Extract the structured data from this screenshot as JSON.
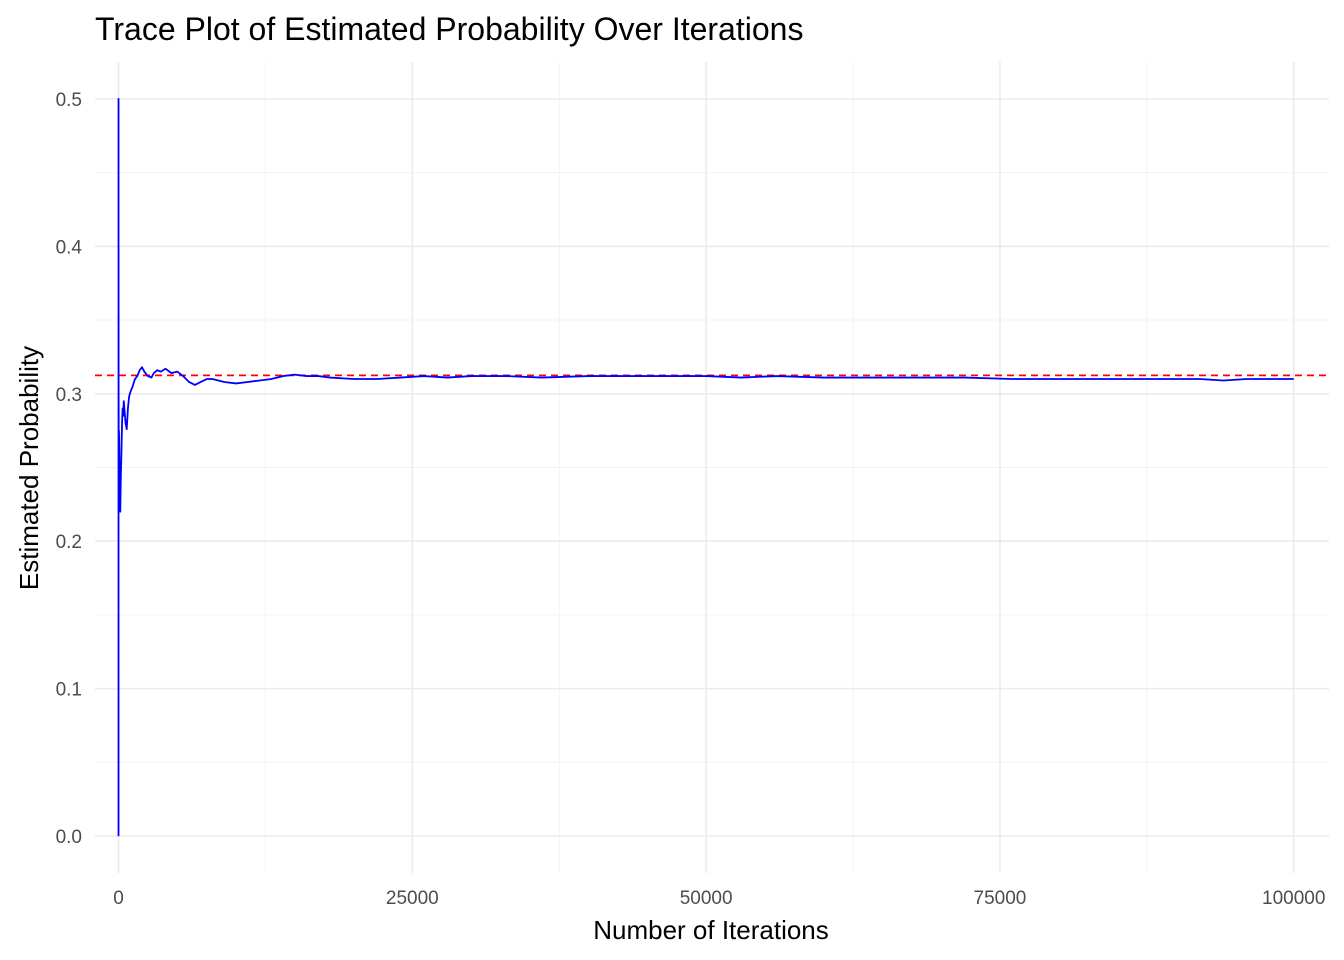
{
  "chart_data": {
    "type": "line",
    "title": "Trace Plot of Estimated Probability Over Iterations",
    "xlabel": "Number of Iterations",
    "ylabel": "Estimated Probability",
    "xlim": [
      -2000,
      103000
    ],
    "ylim": [
      -0.025,
      0.525
    ],
    "x_ticks": [
      0,
      25000,
      50000,
      75000,
      100000
    ],
    "x_tick_labels": [
      "0",
      "25000",
      "50000",
      "75000",
      "100000"
    ],
    "y_ticks": [
      0.0,
      0.1,
      0.2,
      0.3,
      0.4,
      0.5
    ],
    "y_tick_labels": [
      "0.0",
      "0.1",
      "0.2",
      "0.3",
      "0.4",
      "0.5"
    ],
    "grid": true,
    "legend": "none",
    "series": [
      {
        "color": "#0000ff",
        "x": [
          1,
          2,
          3,
          5,
          10,
          20,
          40,
          60,
          80,
          100,
          150,
          200,
          250,
          300,
          350,
          400,
          450,
          500,
          600,
          700,
          800,
          900,
          1000,
          1200,
          1400,
          1600,
          1800,
          2000,
          2200,
          2500,
          2800,
          3000,
          3300,
          3600,
          4000,
          4500,
          5000,
          5500,
          6000,
          6500,
          7000,
          7500,
          8000,
          9000,
          10000,
          11000,
          12000,
          13000,
          14000,
          15000,
          16000,
          17000,
          18000,
          20000,
          22000,
          24000,
          26000,
          28000,
          30000,
          33000,
          36000,
          40000,
          44000,
          48000,
          50000,
          53000,
          56000,
          60000,
          64000,
          68000,
          72000,
          76000,
          80000,
          84000,
          88000,
          92000,
          94000,
          96000,
          98000,
          100000
        ],
        "y": [
          0.0,
          0.5,
          0.333,
          0.4,
          0.3,
          0.25,
          0.275,
          0.267,
          0.25,
          0.24,
          0.22,
          0.245,
          0.26,
          0.28,
          0.29,
          0.285,
          0.295,
          0.29,
          0.28,
          0.276,
          0.29,
          0.298,
          0.301,
          0.305,
          0.31,
          0.312,
          0.316,
          0.318,
          0.315,
          0.312,
          0.311,
          0.314,
          0.316,
          0.315,
          0.317,
          0.314,
          0.315,
          0.312,
          0.308,
          0.306,
          0.308,
          0.31,
          0.31,
          0.308,
          0.307,
          0.308,
          0.309,
          0.31,
          0.312,
          0.313,
          0.312,
          0.312,
          0.311,
          0.31,
          0.31,
          0.311,
          0.312,
          0.311,
          0.312,
          0.312,
          0.311,
          0.312,
          0.312,
          0.312,
          0.312,
          0.311,
          0.312,
          0.311,
          0.311,
          0.311,
          0.311,
          0.31,
          0.31,
          0.31,
          0.31,
          0.31,
          0.309,
          0.31,
          0.31,
          0.31
        ]
      }
    ],
    "reference_line": {
      "orientation": "horizontal",
      "y": 0.3125,
      "style": "dashed",
      "color": "#ff0000"
    }
  }
}
